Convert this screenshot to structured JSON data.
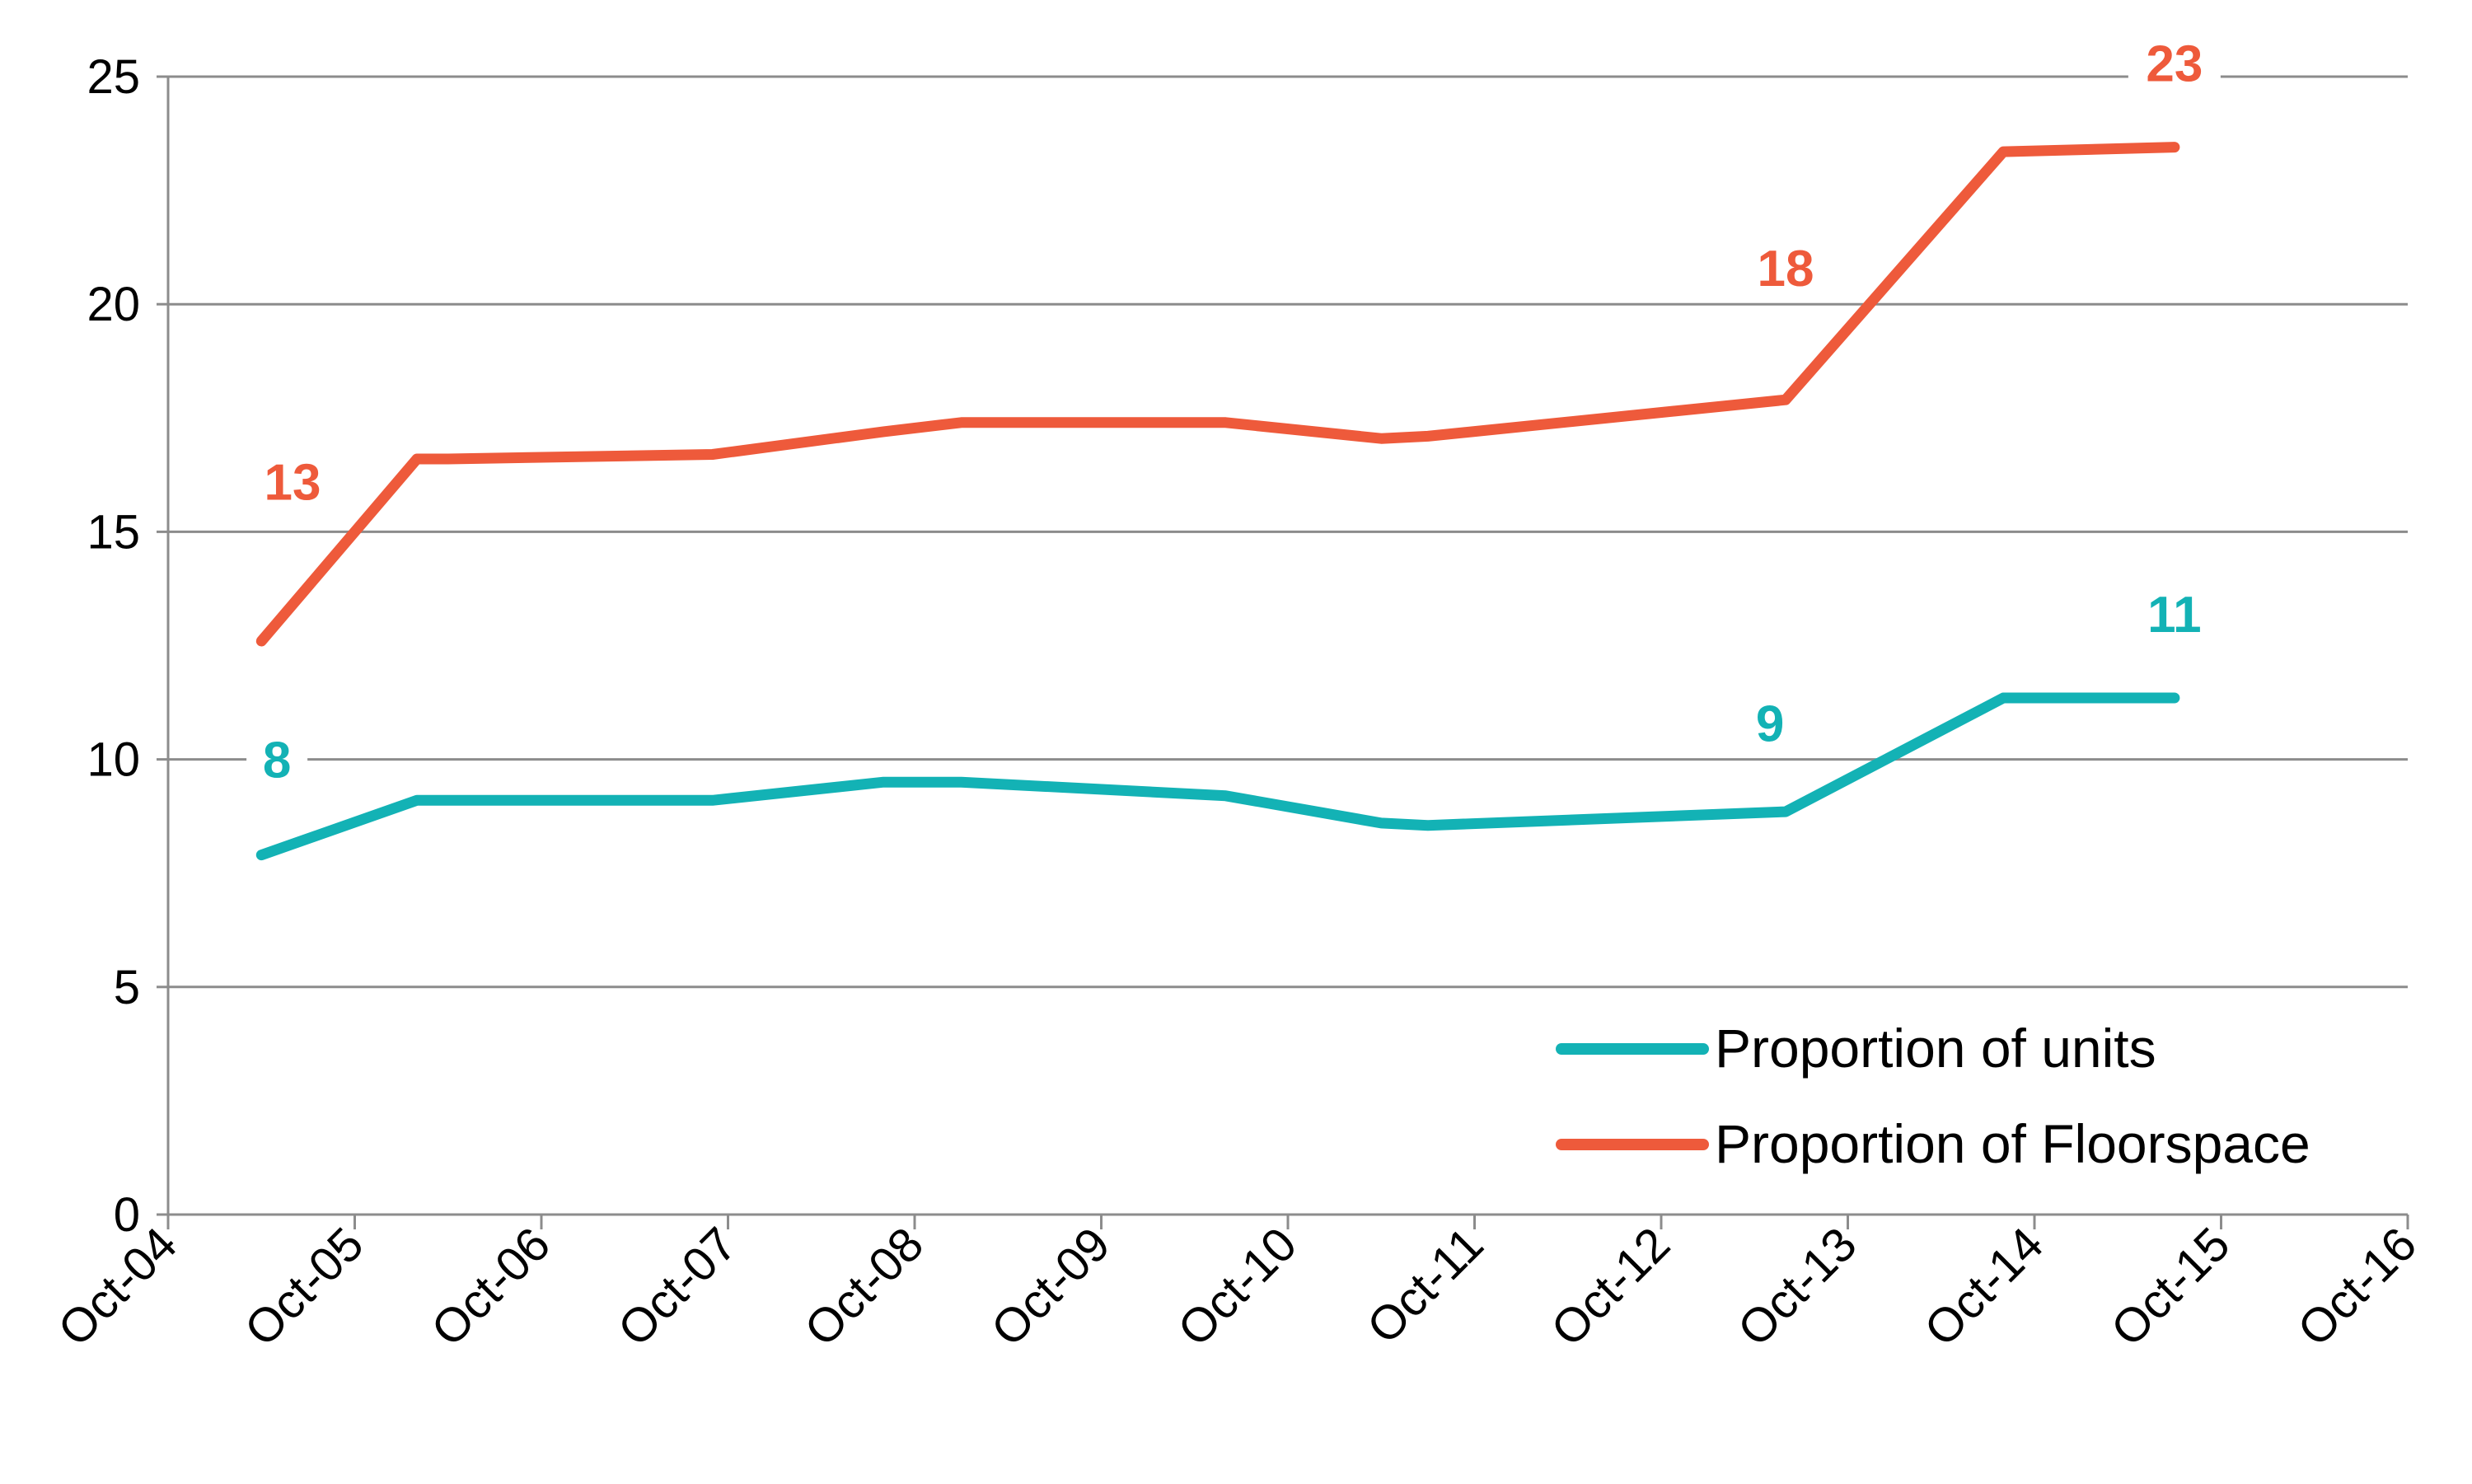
{
  "chart_data": {
    "type": "line",
    "title": "",
    "xlabel": "",
    "ylabel": "",
    "ylim": [
      0,
      25
    ],
    "yticks": [
      0,
      5,
      10,
      15,
      20,
      25
    ],
    "xticks": [
      "Oct-04",
      "Oct-05",
      "Oct-06",
      "Oct-07",
      "Oct-08",
      "Oct-09",
      "Oct-10",
      "Oct-11",
      "Oct-12",
      "Oct-13",
      "Oct-14",
      "Oct-15",
      "Oct-16"
    ],
    "grid": true,
    "legend_position": "bottom-right",
    "series": [
      {
        "name": "Proportion of units",
        "color": "#13B2B5",
        "points": [
          {
            "x": "2005-04",
            "y": 7.9
          },
          {
            "x": "2006-02",
            "y": 9.1
          },
          {
            "x": "2006-04",
            "y": 9.1
          },
          {
            "x": "2007-09",
            "y": 9.1
          },
          {
            "x": "2008-08",
            "y": 9.5
          },
          {
            "x": "2009-01",
            "y": 9.5
          },
          {
            "x": "2010-06",
            "y": 9.2
          },
          {
            "x": "2011-04",
            "y": 8.6
          },
          {
            "x": "2011-07",
            "y": 8.55
          },
          {
            "x": "2013-06",
            "y": 8.85
          },
          {
            "x": "2014-08",
            "y": 11.35
          },
          {
            "x": "2015-07",
            "y": 11.35
          }
        ],
        "labels": [
          {
            "text": "8",
            "x": "2005-05",
            "y": 10.0
          },
          {
            "text": "9",
            "x": "2013-05",
            "y": 10.8
          },
          {
            "text": "11",
            "x": "2015-07",
            "y": 13.2
          }
        ]
      },
      {
        "name": "Proportion of Floorspace",
        "color": "#EE5A3B",
        "points": [
          {
            "x": "2005-04",
            "y": 12.6
          },
          {
            "x": "2006-02",
            "y": 16.6
          },
          {
            "x": "2006-04",
            "y": 16.6
          },
          {
            "x": "2007-09",
            "y": 16.7
          },
          {
            "x": "2008-08",
            "y": 17.2
          },
          {
            "x": "2009-01",
            "y": 17.4
          },
          {
            "x": "2010-06",
            "y": 17.4
          },
          {
            "x": "2011-04",
            "y": 17.05
          },
          {
            "x": "2011-07",
            "y": 17.1
          },
          {
            "x": "2013-06",
            "y": 17.9
          },
          {
            "x": "2014-08",
            "y": 23.35
          },
          {
            "x": "2015-07",
            "y": 23.45
          }
        ],
        "labels": [
          {
            "text": "13",
            "x": "2005-06",
            "y": 16.1
          },
          {
            "text": "18",
            "x": "2013-06",
            "y": 20.8
          },
          {
            "text": "23",
            "x": "2015-07",
            "y": 25.3
          }
        ]
      }
    ]
  }
}
